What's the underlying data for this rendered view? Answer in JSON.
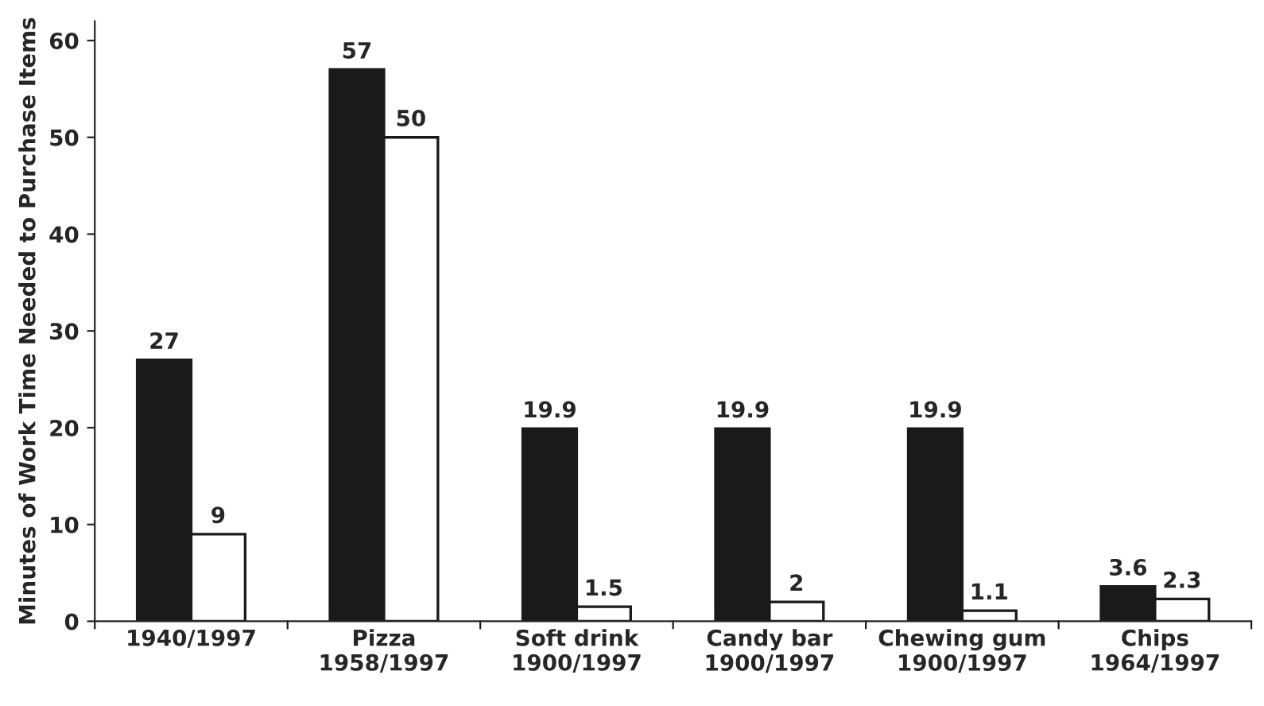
{
  "chart_data": {
    "type": "bar",
    "ylabel": "Minutes of Work Time Needed to Purchase Items",
    "categories": [
      "1940/1997",
      "Pizza\n1958/1997",
      "Soft drink\n1900/1997",
      "Candy bar\n1900/1997",
      "Chewing gum\n1900/1997",
      "Chips\n1964/1997"
    ],
    "series": [
      {
        "color": "#1a1a1a",
        "values": [
          27,
          57,
          19.9,
          19.9,
          19.9,
          3.6
        ]
      },
      {
        "color": "#ffffff",
        "values": [
          9,
          50,
          1.5,
          2,
          1.1,
          2.3
        ]
      }
    ],
    "ylim": [
      0,
      62
    ],
    "yticks": [
      0,
      10,
      20,
      30,
      40,
      50,
      60
    ],
    "data_labels": true,
    "grid": false,
    "legend": false
  }
}
